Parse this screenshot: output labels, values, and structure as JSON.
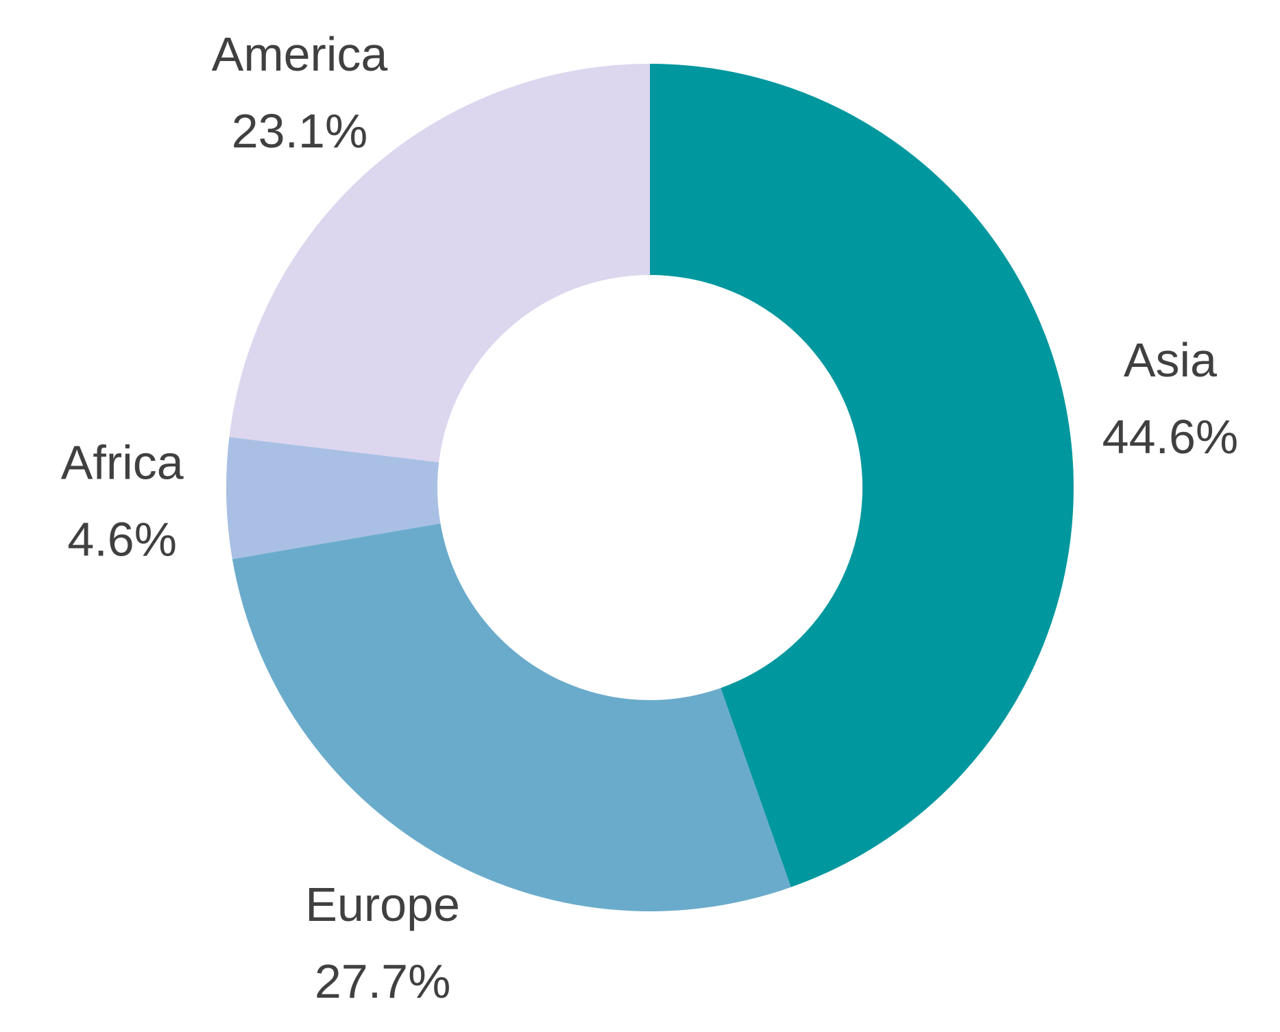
{
  "chart_data": {
    "type": "pie",
    "variant": "donut",
    "start_angle_deg": 90,
    "direction": "clockwise",
    "slices": [
      {
        "name": "Asia",
        "value": 44.6,
        "label_value": "44.6%",
        "color": "#00979E"
      },
      {
        "name": "Europe",
        "value": 27.7,
        "label_value": "27.7%",
        "color": "#6AABCB"
      },
      {
        "name": "Africa",
        "value": 4.6,
        "label_value": "4.6%",
        "color": "#A9C0E4"
      },
      {
        "name": "America",
        "value": 23.1,
        "label_value": "23.1%",
        "color": "#DCD6EF"
      }
    ],
    "title": "",
    "legend": "none"
  }
}
